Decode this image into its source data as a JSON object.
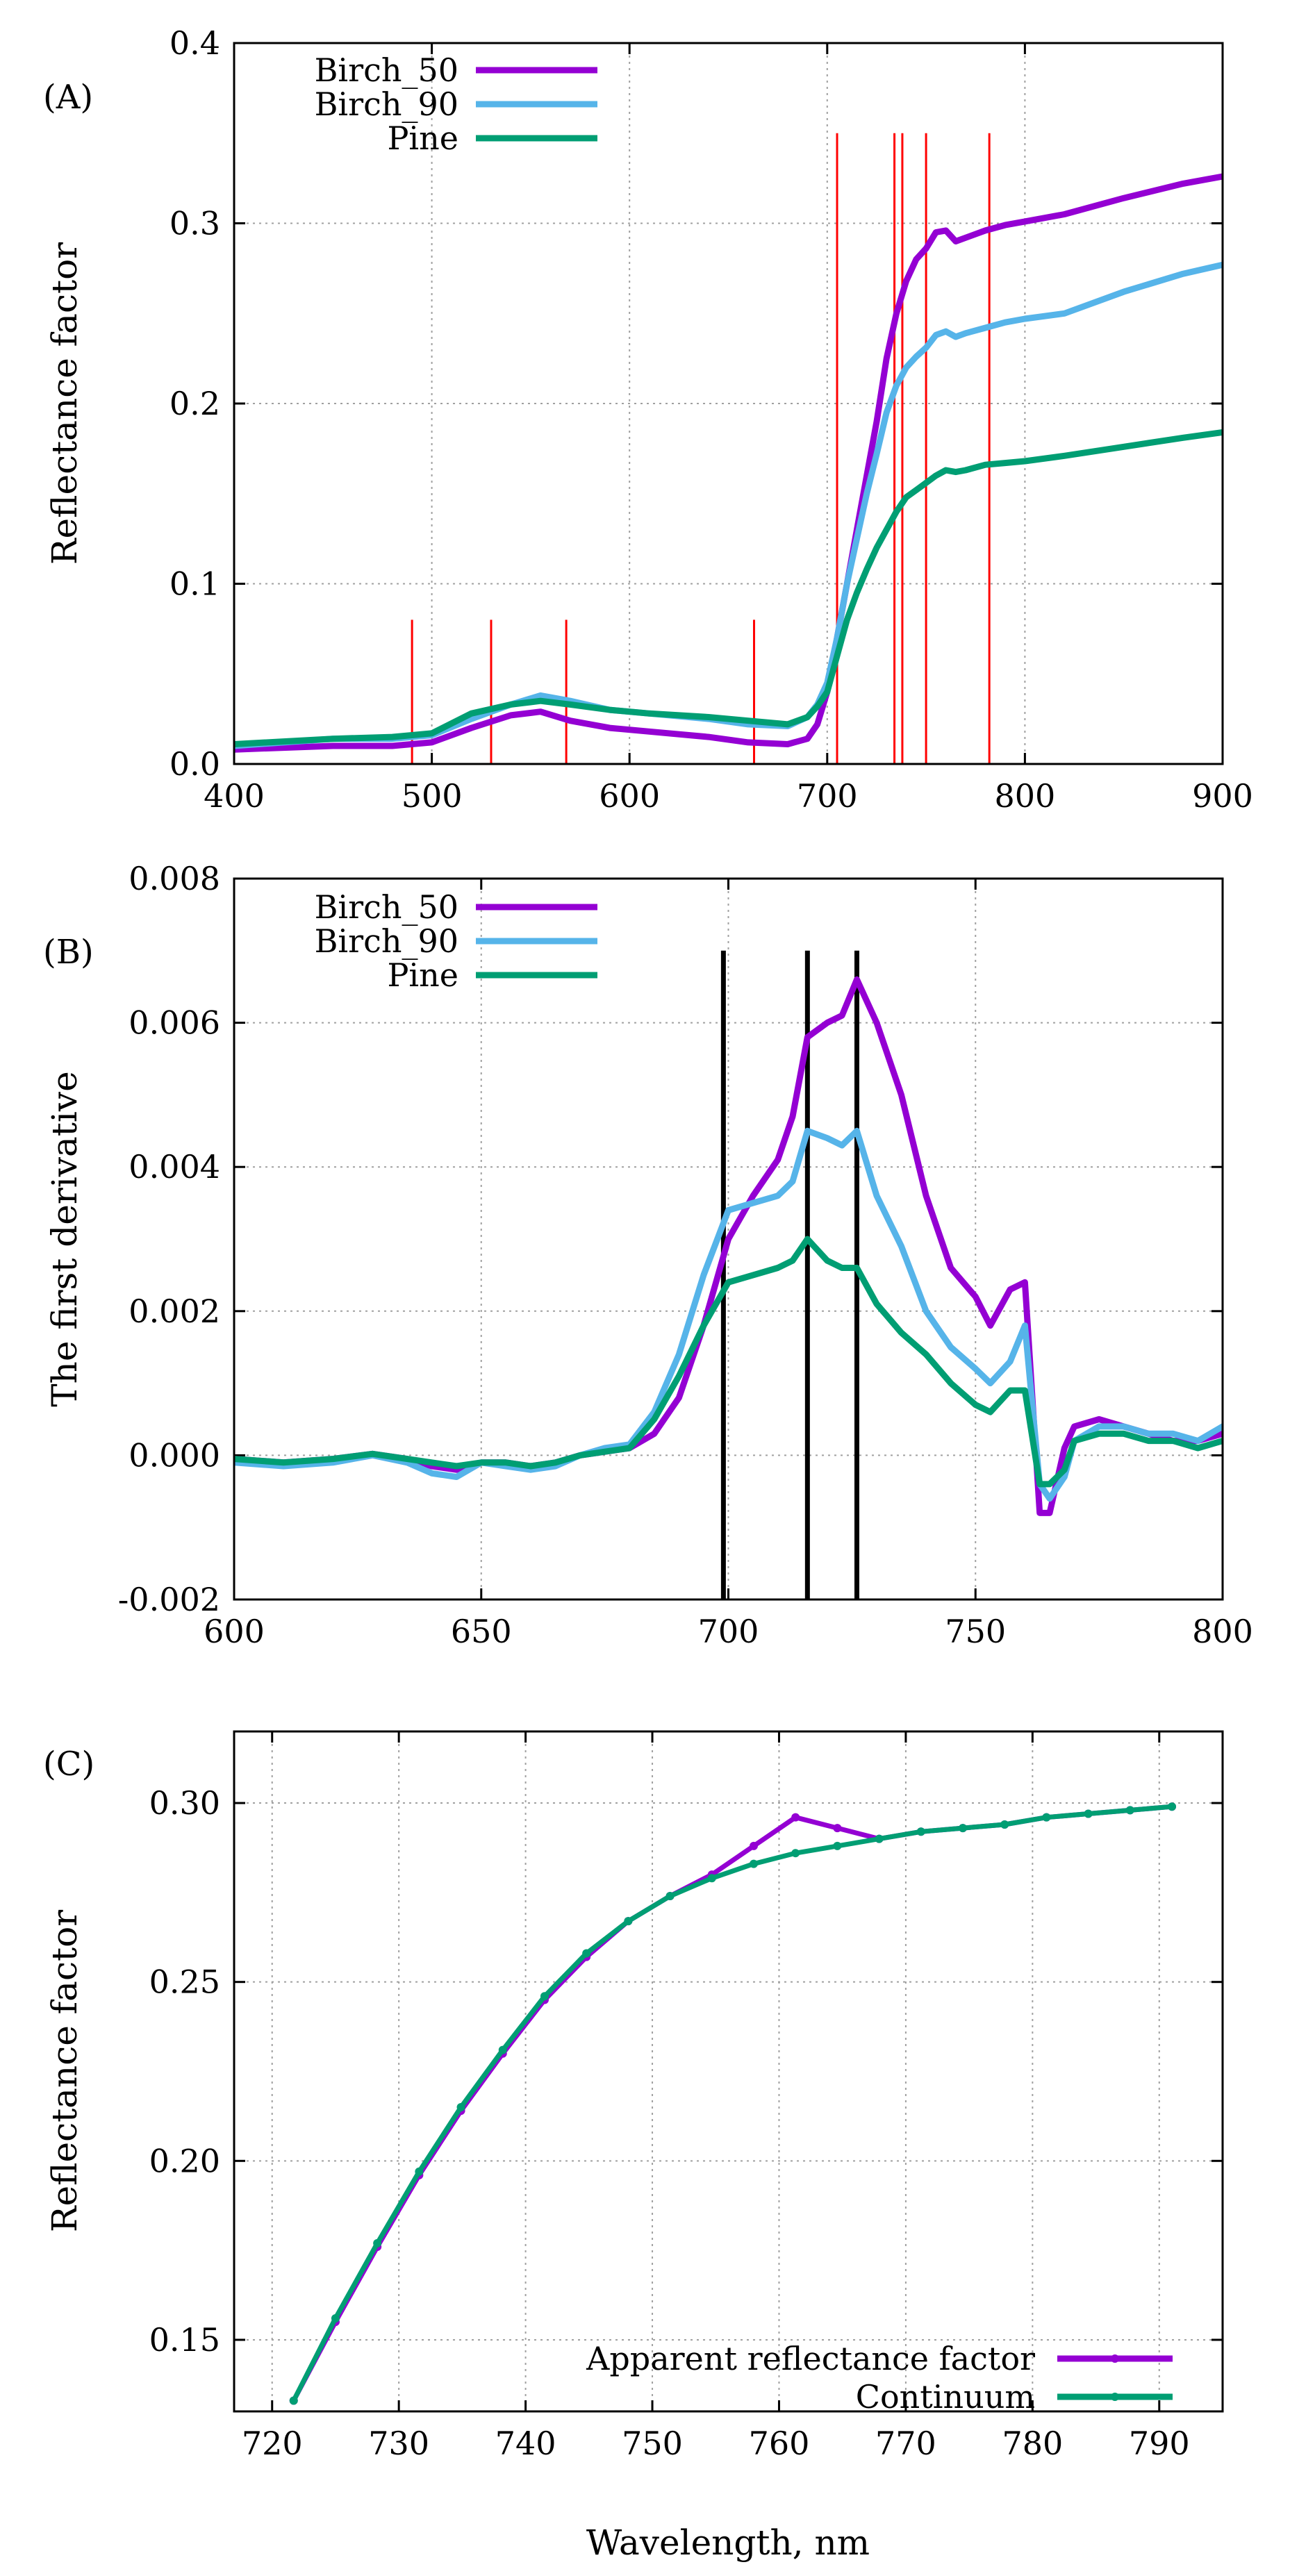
{
  "chart_data": [
    {
      "panel": "(A)",
      "type": "line",
      "title": "",
      "xlabel": "",
      "ylabel": "Reflectance factor",
      "xlim": [
        400,
        900
      ],
      "ylim": [
        0.0,
        0.4
      ],
      "xticks": [
        400,
        500,
        600,
        700,
        800,
        900
      ],
      "yticks": [
        0.0,
        0.1,
        0.2,
        0.3,
        0.4
      ],
      "xtick_labels": [
        "400",
        "500",
        "600",
        "700",
        "800",
        "900"
      ],
      "ytick_labels": [
        "0.0",
        "0.1",
        "0.2",
        "0.3",
        "0.4"
      ],
      "grid": true,
      "legend_position": "top-left",
      "series": [
        {
          "name": "Birch_50",
          "color": "#9400d3",
          "x": [
            400,
            450,
            480,
            500,
            520,
            540,
            555,
            570,
            590,
            610,
            640,
            660,
            680,
            690,
            695,
            700,
            705,
            710,
            715,
            720,
            725,
            730,
            735,
            740,
            745,
            750,
            755,
            760,
            765,
            770,
            780,
            790,
            800,
            820,
            850,
            880,
            900
          ],
          "y": [
            0.008,
            0.01,
            0.01,
            0.012,
            0.02,
            0.027,
            0.029,
            0.024,
            0.02,
            0.018,
            0.015,
            0.012,
            0.011,
            0.014,
            0.022,
            0.04,
            0.07,
            0.1,
            0.13,
            0.16,
            0.19,
            0.225,
            0.25,
            0.268,
            0.28,
            0.286,
            0.295,
            0.296,
            0.29,
            0.292,
            0.296,
            0.299,
            0.301,
            0.305,
            0.314,
            0.322,
            0.326
          ]
        },
        {
          "name": "Birch_90",
          "color": "#56b4e9",
          "x": [
            400,
            450,
            480,
            500,
            520,
            540,
            555,
            570,
            590,
            610,
            640,
            660,
            680,
            690,
            695,
            700,
            705,
            710,
            715,
            720,
            725,
            730,
            735,
            740,
            745,
            750,
            755,
            760,
            765,
            770,
            780,
            790,
            800,
            820,
            850,
            880,
            900
          ],
          "y": [
            0.01,
            0.014,
            0.014,
            0.016,
            0.025,
            0.033,
            0.038,
            0.035,
            0.03,
            0.028,
            0.025,
            0.022,
            0.021,
            0.026,
            0.033,
            0.045,
            0.07,
            0.1,
            0.125,
            0.15,
            0.172,
            0.195,
            0.21,
            0.22,
            0.226,
            0.231,
            0.238,
            0.24,
            0.237,
            0.239,
            0.242,
            0.245,
            0.247,
            0.25,
            0.262,
            0.272,
            0.277
          ]
        },
        {
          "name": "Pine",
          "color": "#009e73",
          "x": [
            400,
            450,
            480,
            500,
            520,
            540,
            555,
            570,
            590,
            610,
            640,
            660,
            680,
            690,
            695,
            700,
            705,
            710,
            715,
            720,
            725,
            730,
            735,
            740,
            745,
            750,
            755,
            760,
            765,
            770,
            780,
            790,
            800,
            820,
            850,
            880,
            900
          ],
          "y": [
            0.011,
            0.014,
            0.015,
            0.017,
            0.028,
            0.033,
            0.035,
            0.033,
            0.03,
            0.028,
            0.026,
            0.024,
            0.022,
            0.026,
            0.032,
            0.04,
            0.06,
            0.08,
            0.095,
            0.108,
            0.12,
            0.13,
            0.14,
            0.148,
            0.152,
            0.156,
            0.16,
            0.163,
            0.162,
            0.163,
            0.166,
            0.167,
            0.168,
            0.171,
            0.176,
            0.181,
            0.184
          ]
        }
      ],
      "vertical_markers": {
        "color": "#ff0000",
        "lines": [
          [
            490,
            0.08
          ],
          [
            530,
            0.08
          ],
          [
            568,
            0.08
          ],
          [
            663,
            0.08
          ],
          [
            705,
            0.35
          ],
          [
            734,
            0.35
          ],
          [
            738,
            0.35
          ],
          [
            750,
            0.35
          ],
          [
            782,
            0.35
          ]
        ]
      }
    },
    {
      "panel": "(B)",
      "type": "line",
      "title": "",
      "xlabel": "",
      "ylabel": "The first derivative",
      "xlim": [
        600,
        800
      ],
      "ylim": [
        -0.002,
        0.008
      ],
      "xticks": [
        600,
        650,
        700,
        750,
        800
      ],
      "yticks": [
        -0.002,
        0.0,
        0.002,
        0.004,
        0.006,
        0.008
      ],
      "xtick_labels": [
        "600",
        "650",
        "700",
        "750",
        "800"
      ],
      "ytick_labels": [
        "-0.002",
        "0.000",
        "0.002",
        "0.004",
        "0.006",
        "0.008"
      ],
      "grid": true,
      "legend_position": "top-left",
      "series": [
        {
          "name": "Birch_50",
          "color": "#9400d3",
          "x": [
            600,
            610,
            620,
            628,
            635,
            640,
            645,
            650,
            655,
            660,
            665,
            670,
            675,
            680,
            685,
            690,
            695,
            700,
            705,
            710,
            713,
            716,
            720,
            723,
            726,
            730,
            735,
            740,
            745,
            750,
            753,
            757,
            760,
            763,
            765,
            768,
            770,
            775,
            780,
            785,
            790,
            795,
            800
          ],
          "y": [
            -5e-05,
            -0.0001,
            -5e-05,
            2e-05,
            -5e-05,
            -0.00015,
            -0.0002,
            -0.0001,
            -0.0001,
            -0.00015,
            -0.0001,
            0.0,
            5e-05,
            0.0001,
            0.0003,
            0.0008,
            0.0018,
            0.003,
            0.0036,
            0.0041,
            0.0047,
            0.0058,
            0.006,
            0.0061,
            0.0066,
            0.006,
            0.005,
            0.0036,
            0.0026,
            0.0022,
            0.0018,
            0.0023,
            0.0024,
            -0.0008,
            -0.0008,
            0.0001,
            0.0004,
            0.0005,
            0.0004,
            0.0003,
            0.0002,
            0.0002,
            0.0003
          ]
        },
        {
          "name": "Birch_90",
          "color": "#56b4e9",
          "x": [
            600,
            610,
            620,
            628,
            635,
            640,
            645,
            650,
            655,
            660,
            665,
            670,
            675,
            680,
            685,
            690,
            695,
            700,
            705,
            710,
            713,
            716,
            720,
            723,
            726,
            730,
            735,
            740,
            745,
            750,
            753,
            757,
            760,
            763,
            765,
            768,
            770,
            775,
            780,
            785,
            790,
            795,
            800
          ],
          "y": [
            -0.0001,
            -0.00015,
            -0.0001,
            0.0,
            -0.0001,
            -0.00025,
            -0.0003,
            -0.0001,
            -0.00015,
            -0.0002,
            -0.00015,
            0.0,
            0.0001,
            0.00015,
            0.0006,
            0.0014,
            0.0025,
            0.0034,
            0.0035,
            0.0036,
            0.0038,
            0.0045,
            0.0044,
            0.0043,
            0.0045,
            0.0036,
            0.0029,
            0.002,
            0.0015,
            0.0012,
            0.001,
            0.0013,
            0.0018,
            -0.0004,
            -0.0006,
            -0.0003,
            0.0002,
            0.0004,
            0.0004,
            0.0003,
            0.0003,
            0.0002,
            0.0004
          ]
        },
        {
          "name": "Pine",
          "color": "#009e73",
          "x": [
            600,
            610,
            620,
            628,
            635,
            640,
            645,
            650,
            655,
            660,
            665,
            670,
            675,
            680,
            685,
            690,
            695,
            700,
            705,
            710,
            713,
            716,
            720,
            723,
            726,
            730,
            735,
            740,
            745,
            750,
            753,
            757,
            760,
            763,
            765,
            768,
            770,
            775,
            780,
            785,
            790,
            795,
            800
          ],
          "y": [
            -5e-05,
            -0.0001,
            -5e-05,
            2e-05,
            -5e-05,
            -0.0001,
            -0.00015,
            -0.0001,
            -0.0001,
            -0.00015,
            -0.0001,
            0.0,
            5e-05,
            0.0001,
            0.0005,
            0.0011,
            0.0018,
            0.0024,
            0.0025,
            0.0026,
            0.0027,
            0.003,
            0.0027,
            0.0026,
            0.0026,
            0.0021,
            0.0017,
            0.0014,
            0.001,
            0.0007,
            0.0006,
            0.0009,
            0.0009,
            -0.0004,
            -0.0004,
            -0.0002,
            0.0002,
            0.0003,
            0.0003,
            0.0002,
            0.0002,
            0.0001,
            0.0002
          ]
        }
      ],
      "vertical_markers": {
        "color": "#000000",
        "lines": [
          [
            699,
            0.007
          ],
          [
            716,
            0.007
          ],
          [
            726,
            0.007
          ]
        ]
      }
    },
    {
      "panel": "(C)",
      "type": "line",
      "title": "",
      "xlabel": "Wavelength, nm",
      "ylabel": "Reflectance factor",
      "xlim": [
        717,
        795
      ],
      "ylim": [
        0.13,
        0.32
      ],
      "xticks": [
        720,
        730,
        740,
        750,
        760,
        770,
        780,
        790
      ],
      "yticks": [
        0.15,
        0.2,
        0.25,
        0.3
      ],
      "xtick_labels": [
        "720",
        "730",
        "740",
        "750",
        "760",
        "770",
        "780",
        "790"
      ],
      "ytick_labels": [
        "0.15",
        "0.20",
        "0.25",
        "0.30"
      ],
      "grid": true,
      "legend_position": "bottom-right",
      "series": [
        {
          "name": "Apparent reflectance factor",
          "color": "#9400d3",
          "x": [
            721.7,
            725.0,
            728.3,
            731.6,
            734.9,
            738.2,
            741.5,
            744.8,
            748.1,
            751.4,
            754.7,
            758.0,
            761.3,
            764.6,
            767.9,
            771.2,
            774.5,
            777.8,
            781.1,
            784.4,
            787.7,
            791.0
          ],
          "y": [
            0.133,
            0.155,
            0.176,
            0.196,
            0.214,
            0.23,
            0.245,
            0.257,
            0.267,
            0.274,
            0.28,
            0.288,
            0.296,
            0.293,
            0.29,
            0.292,
            0.293,
            0.294,
            0.296,
            0.297,
            0.298,
            0.299
          ]
        },
        {
          "name": "Continuum",
          "color": "#009e73",
          "x": [
            721.7,
            725.0,
            728.3,
            731.6,
            734.9,
            738.2,
            741.5,
            744.8,
            748.1,
            751.4,
            754.7,
            758.0,
            761.3,
            764.6,
            767.9,
            771.2,
            774.5,
            777.8,
            781.1,
            784.4,
            787.7,
            791.0
          ],
          "y": [
            0.133,
            0.156,
            0.177,
            0.197,
            0.215,
            0.231,
            0.246,
            0.258,
            0.267,
            0.274,
            0.279,
            0.283,
            0.286,
            0.288,
            0.29,
            0.292,
            0.293,
            0.294,
            0.296,
            0.297,
            0.298,
            0.299
          ]
        }
      ]
    }
  ]
}
